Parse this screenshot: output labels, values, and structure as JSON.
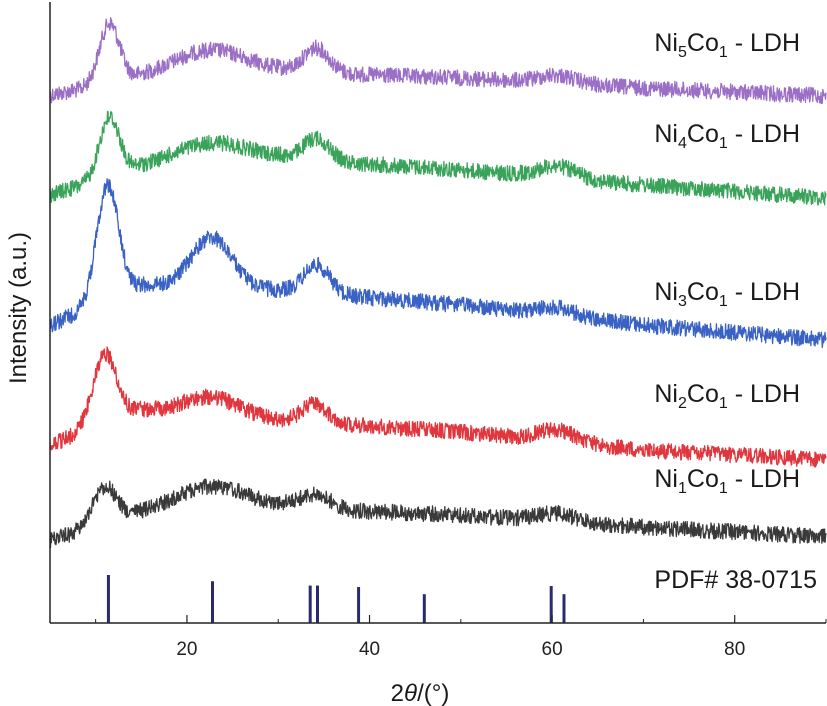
{
  "chart_data": {
    "type": "line",
    "title": "",
    "xlabel": "2θ/(°)",
    "ylabel": "Intensity  (a.u.)",
    "xlim": [
      5,
      90
    ],
    "xticks": [
      20,
      40,
      60,
      80
    ],
    "grid": false,
    "series": [
      {
        "name": "Ni5Co1 - LDH",
        "label": {
          "base1": "Ni",
          "sub1": "5",
          "base2": "Co",
          "sub2": "1",
          "rest": " - LDH"
        },
        "color": "#9b6fc6",
        "peaks": [
          {
            "x": 11.5,
            "h": 60,
            "w": 1.1
          },
          {
            "x": 22.5,
            "h": 25,
            "w": 4.0
          },
          {
            "x": 34.2,
            "h": 25,
            "w": 1.4
          },
          {
            "x": 60.5,
            "h": 8,
            "w": 2.0
          }
        ],
        "background": [
          [
            5,
            95
          ],
          [
            15,
            78
          ],
          [
            30,
            72
          ],
          [
            50,
            78
          ],
          [
            70,
            88
          ],
          [
            90,
            96
          ]
        ]
      },
      {
        "name": "Ni4Co1 - LDH",
        "label": {
          "base1": "Ni",
          "sub1": "4",
          "base2": "Co",
          "sub2": "1",
          "rest": " - LDH"
        },
        "color": "#3aa35a",
        "peaks": [
          {
            "x": 11.5,
            "h": 60,
            "w": 1.1
          },
          {
            "x": 22.5,
            "h": 20,
            "w": 4.0
          },
          {
            "x": 34.2,
            "h": 22,
            "w": 1.4
          },
          {
            "x": 60.5,
            "h": 12,
            "w": 2.0
          }
        ],
        "background": [
          [
            5,
            195
          ],
          [
            15,
            168
          ],
          [
            30,
            158
          ],
          [
            50,
            170
          ],
          [
            70,
            185
          ],
          [
            90,
            198
          ]
        ]
      },
      {
        "name": "Ni3Co1 - LDH",
        "label": {
          "base1": "Ni",
          "sub1": "3",
          "base2": "Co",
          "sub2": "1",
          "rest": " - LDH"
        },
        "color": "#3a62c4",
        "peaks": [
          {
            "x": 11.3,
            "h": 115,
            "w": 1.2
          },
          {
            "x": 22.7,
            "h": 50,
            "w": 2.2
          },
          {
            "x": 34.2,
            "h": 28,
            "w": 1.4
          },
          {
            "x": 60.5,
            "h": 8,
            "w": 2.0
          }
        ],
        "background": [
          [
            5,
            325
          ],
          [
            15,
            285
          ],
          [
            30,
            290
          ],
          [
            50,
            305
          ],
          [
            70,
            325
          ],
          [
            90,
            340
          ]
        ]
      },
      {
        "name": "Ni2Co1 - LDH",
        "label": {
          "base1": "Ni",
          "sub1": "2",
          "base2": "Co",
          "sub2": "1",
          "rest": " - LDH"
        },
        "color": "#e0363e",
        "peaks": [
          {
            "x": 11.0,
            "h": 70,
            "w": 1.3
          },
          {
            "x": 22.7,
            "h": 18,
            "w": 3.0
          },
          {
            "x": 34.0,
            "h": 18,
            "w": 1.4
          },
          {
            "x": 60.5,
            "h": 12,
            "w": 2.0
          }
        ],
        "background": [
          [
            5,
            445
          ],
          [
            15,
            410
          ],
          [
            30,
            420
          ],
          [
            50,
            432
          ],
          [
            70,
            450
          ],
          [
            90,
            460
          ]
        ]
      },
      {
        "name": "Ni1Co1 - LDH",
        "label": {
          "base1": "Ni",
          "sub1": "1",
          "base2": "Co",
          "sub2": "1",
          "rest": " - LDH"
        },
        "color": "#3a3a3a",
        "peaks": [
          {
            "x": 11.0,
            "h": 38,
            "w": 1.3
          },
          {
            "x": 22.5,
            "h": 25,
            "w": 4.0
          },
          {
            "x": 34.0,
            "h": 14,
            "w": 1.8
          },
          {
            "x": 60.5,
            "h": 8,
            "w": 2.0
          }
        ],
        "background": [
          [
            5,
            540
          ],
          [
            15,
            515
          ],
          [
            30,
            508
          ],
          [
            50,
            515
          ],
          [
            70,
            527
          ],
          [
            90,
            537
          ]
        ]
      }
    ],
    "reference": {
      "name": "PDF# 38-0715",
      "color": "#2a2a6e",
      "lines": [
        {
          "x": 11.4,
          "i": 1.0
        },
        {
          "x": 22.8,
          "i": 0.87
        },
        {
          "x": 33.5,
          "i": 0.78
        },
        {
          "x": 34.3,
          "i": 0.78
        },
        {
          "x": 38.8,
          "i": 0.75
        },
        {
          "x": 46.0,
          "i": 0.6
        },
        {
          "x": 59.9,
          "i": 0.77
        },
        {
          "x": 61.3,
          "i": 0.6
        }
      ]
    }
  }
}
